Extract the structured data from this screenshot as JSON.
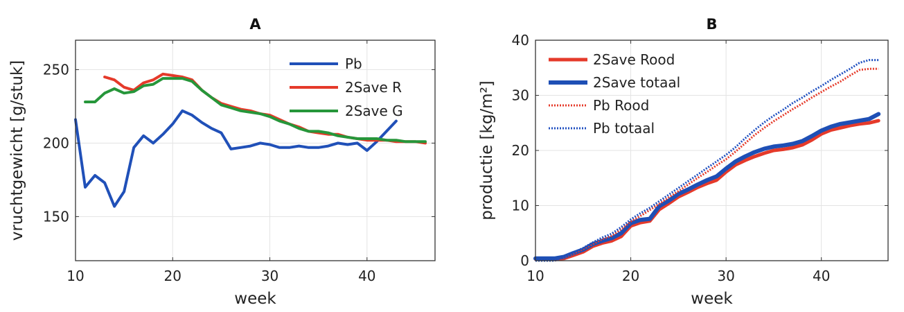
{
  "chart_data": [
    {
      "type": "line",
      "title": "A",
      "xlabel": "week",
      "ylabel": "vruchtgewicht [g/stuk]",
      "xlim": [
        10,
        47
      ],
      "ylim": [
        120,
        270
      ],
      "xticks": [
        10,
        20,
        30,
        40
      ],
      "yticks": [
        150,
        200,
        250
      ],
      "grid": true,
      "legend_position": "top-right",
      "series": [
        {
          "name": "Pb",
          "color": "#2050b8",
          "style": "solid",
          "x": [
            10,
            11,
            12,
            13,
            14,
            15,
            16,
            17,
            18,
            19,
            20,
            21,
            22,
            23,
            24,
            25,
            26,
            27,
            28,
            29,
            30,
            31,
            32,
            33,
            34,
            35,
            36,
            37,
            38,
            39,
            40,
            41,
            42,
            43
          ],
          "y": [
            216,
            170,
            178,
            173,
            157,
            167,
            197,
            205,
            200,
            206,
            213,
            222,
            219,
            214,
            210,
            207,
            196,
            197,
            198,
            200,
            199,
            197,
            197,
            198,
            197,
            197,
            198,
            200,
            199,
            200,
            195,
            201,
            208,
            215
          ]
        },
        {
          "name": "2Save R",
          "color": "#e53a2a",
          "style": "solid",
          "x": [
            13,
            14,
            15,
            16,
            17,
            18,
            19,
            20,
            21,
            22,
            23,
            24,
            25,
            26,
            27,
            28,
            29,
            30,
            31,
            32,
            33,
            34,
            35,
            36,
            37,
            38,
            39,
            40,
            41,
            42,
            43,
            44,
            45,
            46
          ],
          "y": [
            245,
            243,
            238,
            236,
            241,
            243,
            247,
            246,
            245,
            243,
            236,
            231,
            227,
            225,
            223,
            222,
            220,
            219,
            216,
            213,
            211,
            208,
            207,
            206,
            206,
            204,
            203,
            202,
            202,
            202,
            201,
            201,
            201,
            200
          ]
        },
        {
          "name": "2Save G",
          "color": "#26963a",
          "style": "solid",
          "x": [
            11,
            12,
            13,
            14,
            15,
            16,
            17,
            18,
            19,
            20,
            21,
            22,
            23,
            24,
            25,
            26,
            27,
            28,
            29,
            30,
            31,
            32,
            33,
            34,
            35,
            36,
            37,
            38,
            39,
            40,
            41,
            42,
            43,
            44,
            45,
            46
          ],
          "y": [
            228,
            228,
            234,
            237,
            234,
            235,
            239,
            240,
            244,
            244,
            244,
            242,
            236,
            231,
            226,
            224,
            222,
            221,
            220,
            218,
            215,
            213,
            210,
            208,
            208,
            207,
            205,
            204,
            203,
            203,
            203,
            202,
            202,
            201,
            201,
            201
          ]
        }
      ]
    },
    {
      "type": "line",
      "title": "B",
      "xlabel": "week",
      "ylabel": "productie [kg/m²]",
      "xlim": [
        10,
        47
      ],
      "ylim": [
        0,
        40
      ],
      "xticks": [
        10,
        20,
        30,
        40
      ],
      "yticks": [
        0,
        10,
        20,
        30,
        40
      ],
      "grid": true,
      "legend_position": "top-left",
      "series": [
        {
          "name": "2Save Rood",
          "color": "#e53a2a",
          "style": "solid",
          "x": [
            10,
            11,
            12,
            13,
            14,
            15,
            16,
            17,
            18,
            19,
            20,
            21,
            22,
            23,
            24,
            25,
            26,
            27,
            28,
            29,
            30,
            31,
            32,
            33,
            34,
            35,
            36,
            37,
            38,
            39,
            40,
            41,
            42,
            43,
            44,
            45,
            46
          ],
          "y": [
            0.3,
            0.3,
            0.3,
            0.4,
            1.0,
            1.6,
            2.6,
            3.2,
            3.6,
            4.4,
            6.3,
            6.9,
            7.2,
            9.3,
            10.4,
            11.6,
            12.4,
            13.3,
            14.0,
            14.6,
            16.1,
            17.4,
            18.2,
            18.9,
            19.5,
            20.0,
            20.2,
            20.5,
            21.0,
            21.9,
            23.0,
            23.7,
            24.1,
            24.5,
            24.8,
            25.0,
            25.4
          ]
        },
        {
          "name": "2Save totaal",
          "color": "#1e4fb5",
          "style": "solid",
          "x": [
            10,
            11,
            12,
            13,
            14,
            15,
            16,
            17,
            18,
            19,
            20,
            21,
            22,
            23,
            24,
            25,
            26,
            27,
            28,
            29,
            30,
            31,
            32,
            33,
            34,
            35,
            36,
            37,
            38,
            39,
            40,
            41,
            42,
            43,
            44,
            45,
            46
          ],
          "y": [
            0.4,
            0.4,
            0.4,
            0.7,
            1.4,
            2.0,
            3.0,
            3.6,
            4.1,
            5.0,
            6.8,
            7.4,
            7.6,
            9.9,
            10.9,
            12.1,
            12.9,
            13.8,
            14.6,
            15.3,
            16.7,
            18.0,
            18.9,
            19.7,
            20.3,
            20.7,
            20.9,
            21.2,
            21.7,
            22.6,
            23.6,
            24.3,
            24.8,
            25.1,
            25.4,
            25.7,
            26.6
          ]
        },
        {
          "name": "Pb Rood",
          "color": "#e53a2a",
          "style": "dotted",
          "x": [
            10,
            11,
            12,
            13,
            14,
            15,
            16,
            17,
            18,
            19,
            20,
            21,
            22,
            23,
            24,
            25,
            26,
            27,
            28,
            29,
            30,
            31,
            32,
            33,
            34,
            35,
            36,
            37,
            38,
            39,
            40,
            41,
            42,
            43,
            44,
            45,
            46
          ],
          "y": [
            0,
            0,
            0,
            0.6,
            1.3,
            2.1,
            3.0,
            3.9,
            4.5,
            5.7,
            7.1,
            8.1,
            9.2,
            10.3,
            11.5,
            12.6,
            13.8,
            15.0,
            16.1,
            17.3,
            18.4,
            19.8,
            21.3,
            22.8,
            24.1,
            25.3,
            26.4,
            27.5,
            28.5,
            29.6,
            30.6,
            31.6,
            32.5,
            33.6,
            34.6,
            34.8,
            34.8
          ]
        },
        {
          "name": "Pb totaal",
          "color": "#2050c0",
          "style": "dotted",
          "x": [
            10,
            11,
            12,
            13,
            14,
            15,
            16,
            17,
            18,
            19,
            20,
            21,
            22,
            23,
            24,
            25,
            26,
            27,
            28,
            29,
            30,
            31,
            32,
            33,
            34,
            35,
            36,
            37,
            38,
            39,
            40,
            41,
            42,
            43,
            44,
            45,
            46
          ],
          "y": [
            0,
            0,
            0,
            0.7,
            1.5,
            2.3,
            3.3,
            4.2,
            4.9,
            6.1,
            7.5,
            8.6,
            9.6,
            10.8,
            12.0,
            13.2,
            14.4,
            15.6,
            16.8,
            18.0,
            19.2,
            20.6,
            22.2,
            23.7,
            25.1,
            26.3,
            27.4,
            28.6,
            29.6,
            30.7,
            31.7,
            32.8,
            33.8,
            34.8,
            35.9,
            36.4,
            36.4
          ]
        }
      ]
    }
  ]
}
